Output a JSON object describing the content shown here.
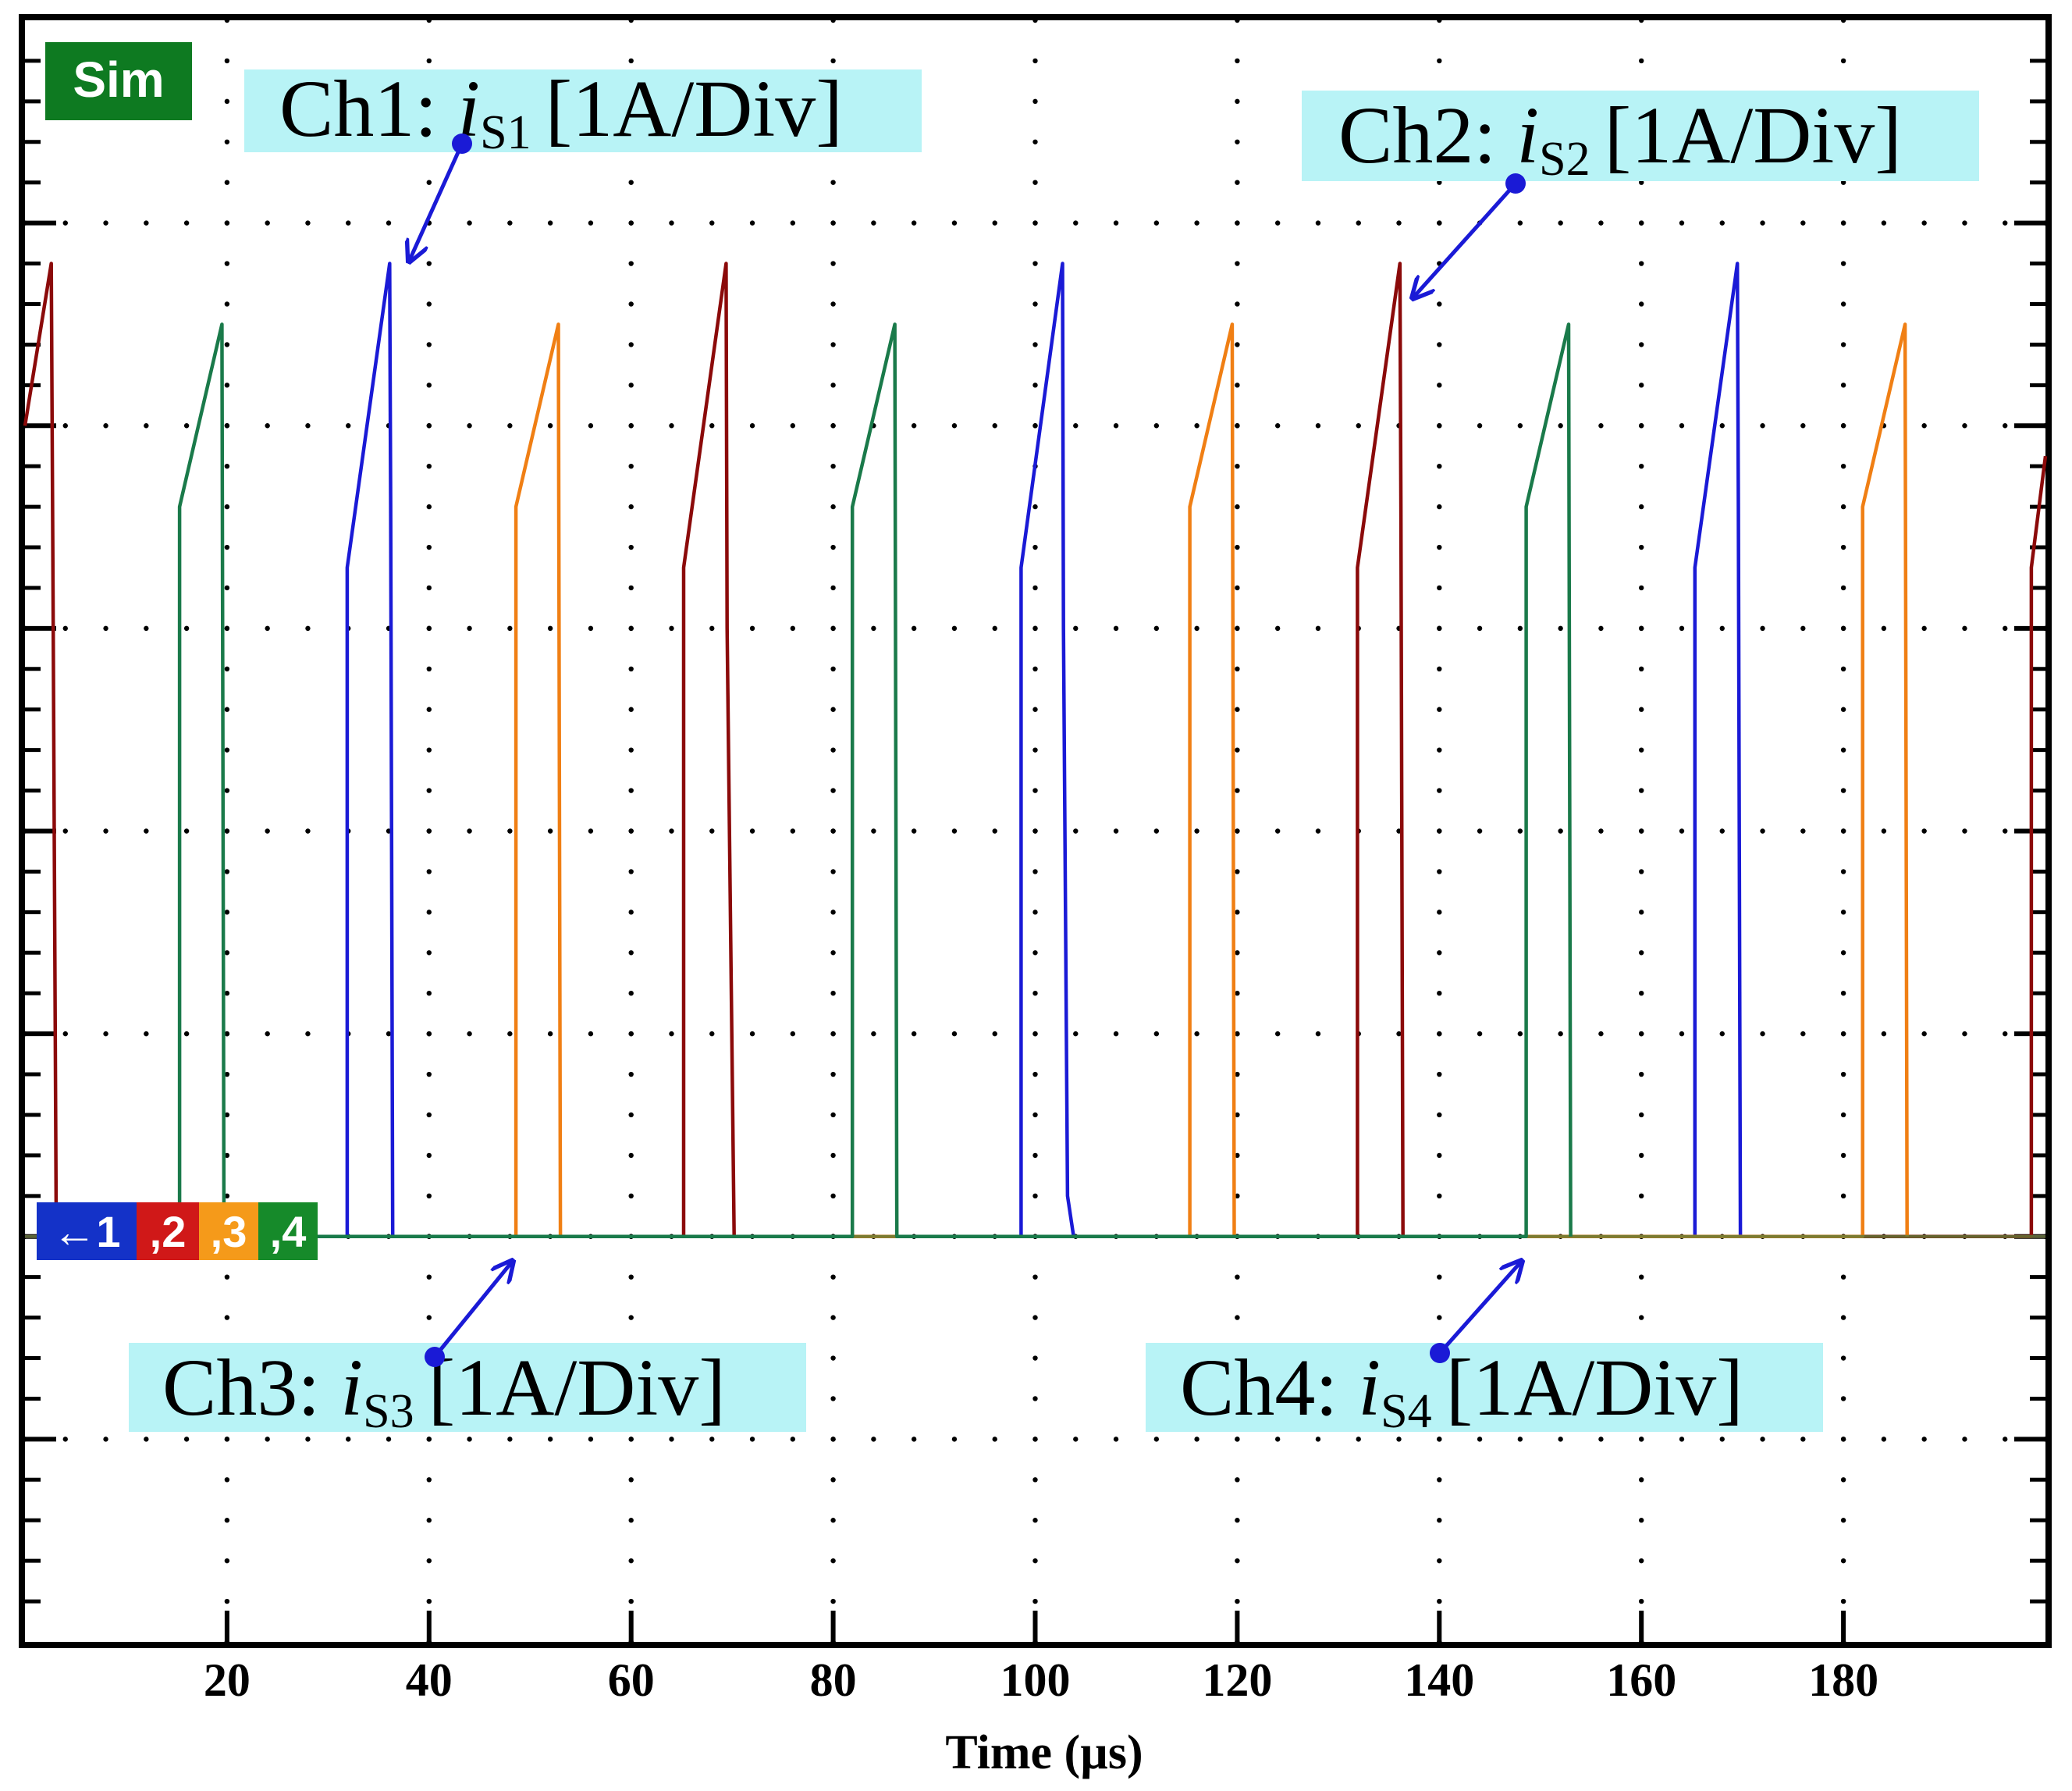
{
  "chart_data": {
    "type": "line",
    "title": "",
    "xlabel": "Time (µs)",
    "ylabel": "",
    "xlim": [
      0,
      200
    ],
    "x_ticks": [
      20,
      40,
      60,
      80,
      100,
      120,
      140,
      160,
      180
    ],
    "x_tick_labels": [
      "20",
      "40",
      "60",
      "80",
      "100",
      "120",
      "140",
      "160",
      "180"
    ],
    "y_divisions": 8,
    "x_divisions": 10,
    "zero_level_div": 2,
    "grid": true,
    "badge": "Sim",
    "marker_labels": [
      "←1",
      ",2",
      ",3",
      ",4"
    ],
    "series": [
      {
        "name": "Ch1: iS1 [1A/Div]",
        "prefix": "Ch1: ",
        "var": "i",
        "sub": "S1",
        "unit": "[1A/Div]",
        "color": "#1a1ad6",
        "points": [
          [
            31.9,
            0
          ],
          [
            31.9,
            3.3
          ],
          [
            36.1,
            4.8
          ],
          [
            36.2,
            3.6
          ],
          [
            36.4,
            0
          ],
          [
            98.6,
            0
          ],
          [
            98.6,
            3.3
          ],
          [
            102.7,
            4.8
          ],
          [
            102.8,
            3.0
          ],
          [
            103.2,
            0.2
          ],
          [
            103.8,
            0
          ],
          [
            165.3,
            0
          ],
          [
            165.3,
            3.3
          ],
          [
            169.5,
            4.8
          ],
          [
            169.6,
            3.6
          ],
          [
            169.8,
            0
          ]
        ]
      },
      {
        "name": "Ch2: iS2 [1A/Div]",
        "prefix": "Ch2: ",
        "var": "i",
        "sub": "S2",
        "unit": "[1A/Div]",
        "color": "#8b0a0a",
        "points": [
          [
            0,
            4.0
          ],
          [
            2.6,
            4.8
          ],
          [
            2.8,
            3.0
          ],
          [
            3.1,
            0
          ],
          [
            65.2,
            0
          ],
          [
            65.2,
            3.3
          ],
          [
            69.4,
            4.8
          ],
          [
            69.5,
            3.0
          ],
          [
            70.2,
            0
          ],
          [
            131.9,
            0
          ],
          [
            131.9,
            3.3
          ],
          [
            136.1,
            4.8
          ],
          [
            136.2,
            3.6
          ],
          [
            136.4,
            0
          ],
          [
            198.6,
            0
          ],
          [
            198.6,
            3.3
          ],
          [
            200,
            3.85
          ]
        ]
      },
      {
        "name": "Ch3: iS3 [1A/Div]",
        "prefix": "Ch3: ",
        "var": "i",
        "sub": "S3",
        "unit": "[1A/Div]",
        "color": "#f07f14",
        "points": [
          [
            48.6,
            0
          ],
          [
            48.6,
            3.6
          ],
          [
            52.8,
            4.5
          ],
          [
            53.0,
            0
          ],
          [
            115.3,
            0
          ],
          [
            115.3,
            3.6
          ],
          [
            119.5,
            4.5
          ],
          [
            119.7,
            0
          ],
          [
            181.9,
            0
          ],
          [
            181.9,
            3.6
          ],
          [
            186.1,
            4.5
          ],
          [
            186.3,
            0
          ]
        ]
      },
      {
        "name": "Ch4: iS4 [1A/Div]",
        "prefix": "Ch4: ",
        "var": "i",
        "sub": "S4",
        "unit": "[1A/Div]",
        "color": "#1a7a4a",
        "points": [
          [
            15.3,
            0
          ],
          [
            15.3,
            3.6
          ],
          [
            19.5,
            4.5
          ],
          [
            19.7,
            0
          ],
          [
            81.9,
            0
          ],
          [
            81.9,
            3.6
          ],
          [
            86.1,
            4.5
          ],
          [
            86.3,
            0
          ],
          [
            148.6,
            0
          ],
          [
            148.6,
            3.6
          ],
          [
            152.8,
            4.5
          ],
          [
            153.0,
            0
          ]
        ]
      }
    ]
  },
  "colors": {
    "badge_bg": "#0e7a21",
    "annotation_bg": "#b8f3f6",
    "arrow": "#1a1ad6",
    "marker_1": "#1432c8",
    "marker_2": "#d01818",
    "marker_3": "#f59a1a",
    "marker_4": "#168a2a"
  }
}
